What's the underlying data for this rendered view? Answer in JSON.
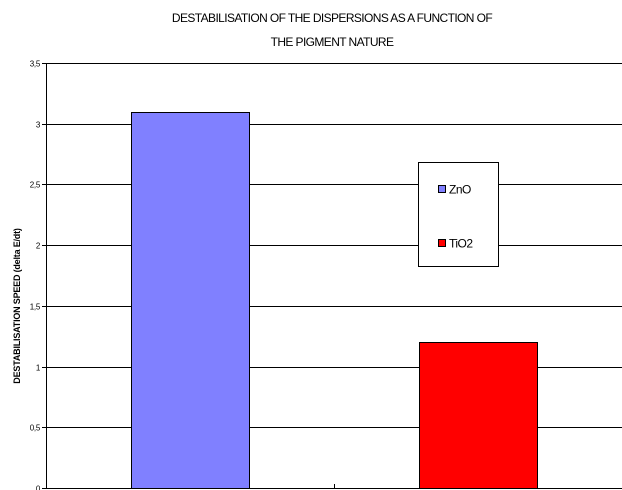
{
  "chart_data": {
    "type": "bar",
    "title_line1": "DESTABILISATION OF THE DISPERSIONS AS A FUNCTION OF",
    "title_line2": "THE PIGMENT NATURE",
    "ylabel": "DESTABILISATION SPEED (delta E/dt)",
    "xlabel": "",
    "ylim": [
      0,
      3.5
    ],
    "yticks": [
      {
        "value": 0,
        "label": "0"
      },
      {
        "value": 0.5,
        "label": "0,5"
      },
      {
        "value": 1,
        "label": "1"
      },
      {
        "value": 1.5,
        "label": "1,5"
      },
      {
        "value": 2,
        "label": "2"
      },
      {
        "value": 2.5,
        "label": "2,5"
      },
      {
        "value": 3,
        "label": "3"
      },
      {
        "value": 3.5,
        "label": "3,5"
      }
    ],
    "grid": true,
    "legend_position": "right",
    "series": [
      {
        "name": "ZnO",
        "value": 3.1,
        "color": "#8080ff"
      },
      {
        "name": "TiO2",
        "value": 1.2,
        "color": "#ff0000"
      }
    ]
  }
}
